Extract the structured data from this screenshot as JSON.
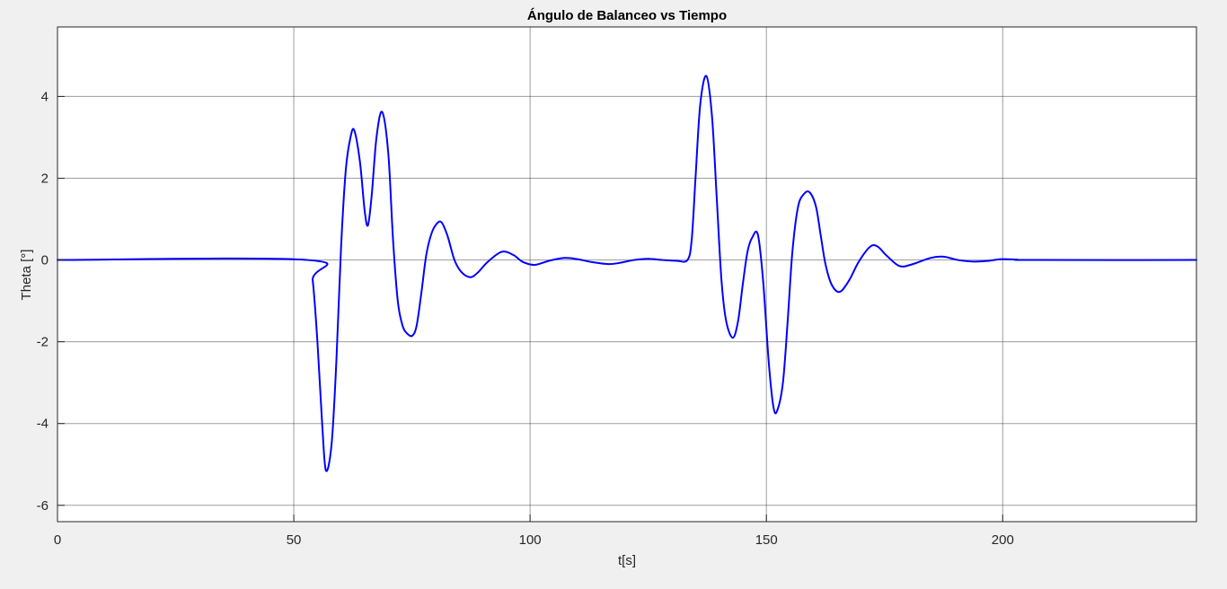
{
  "figure": {
    "background_color": "#f0f0f0",
    "axes_background_color": "#ffffff",
    "grid_color": "#262626",
    "line_color": "#0000ff"
  },
  "chart_data": {
    "type": "line",
    "title": "Ángulo de Balanceo vs Tiempo",
    "xlabel": "t[s]",
    "ylabel": "Theta [°]",
    "xlim": [
      0,
      241
    ],
    "ylim": [
      -6.4,
      5.7
    ],
    "xticks": [
      0,
      50,
      100,
      150,
      200
    ],
    "xtick_labels": [
      "0",
      "50",
      "100",
      "150",
      "200"
    ],
    "yticks": [
      -6,
      -4,
      -2,
      0,
      2,
      4
    ],
    "ytick_labels": [
      "-6",
      "-4",
      "-2",
      "0",
      "2",
      "4"
    ],
    "grid": true,
    "legend": "none",
    "series": [
      {
        "color": "#0000ff",
        "x": [
          0,
          52.9,
          54,
          55,
          56,
          56.8,
          58,
          59,
          60,
          61,
          62,
          62.8,
          64,
          65,
          65.7,
          66.5,
          67.5,
          68.7,
          70,
          71,
          72,
          73,
          74,
          75.1,
          76,
          77,
          78,
          79,
          80,
          81.2,
          82.5,
          84,
          85.5,
          87.4,
          89,
          91,
          94,
          96.5,
          98.5,
          101,
          104,
          107.3,
          110,
          113,
          116.5,
          119,
          122,
          125,
          128,
          131,
          133.3,
          134.2,
          135,
          136,
          137.3,
          138.5,
          139.5,
          140.5,
          141.5,
          142.9,
          144,
          145,
          146,
          147,
          148.2,
          149.3,
          150.5,
          151.5,
          152.3,
          153.5,
          154.5,
          155.5,
          156.7,
          158,
          159.2,
          160.5,
          161.5,
          162.5,
          163.8,
          165.5,
          167.5,
          169.5,
          171.9,
          173.5,
          175.5,
          178.2,
          181,
          184.7,
          187.5,
          190.5,
          194,
          197,
          199.7,
          203,
          206,
          241
        ],
        "y": [
          0,
          0,
          -0.5,
          -2.0,
          -4.0,
          -5.15,
          -4.5,
          -2.5,
          0.3,
          2.2,
          3.0,
          3.17,
          2.4,
          1.2,
          0.85,
          1.6,
          3.0,
          3.62,
          2.6,
          0.5,
          -1.0,
          -1.6,
          -1.8,
          -1.85,
          -1.6,
          -0.8,
          0.1,
          0.6,
          0.85,
          0.93,
          0.6,
          0.0,
          -0.3,
          -0.42,
          -0.3,
          -0.05,
          0.2,
          0.12,
          -0.05,
          -0.12,
          -0.02,
          0.05,
          0.02,
          -0.05,
          -0.1,
          -0.07,
          0.0,
          0.03,
          0.0,
          -0.02,
          0.0,
          0.5,
          2.0,
          3.8,
          4.5,
          3.5,
          1.5,
          -0.5,
          -1.5,
          -1.9,
          -1.5,
          -0.6,
          0.2,
          0.55,
          0.62,
          -0.5,
          -2.5,
          -3.6,
          -3.68,
          -3.0,
          -1.5,
          0.2,
          1.3,
          1.62,
          1.65,
          1.3,
          0.6,
          -0.1,
          -0.6,
          -0.78,
          -0.5,
          -0.05,
          0.32,
          0.33,
          0.1,
          -0.15,
          -0.1,
          0.05,
          0.08,
          0.0,
          -0.04,
          -0.02,
          0.02,
          0.01,
          0.0,
          0.0
        ]
      }
    ]
  }
}
